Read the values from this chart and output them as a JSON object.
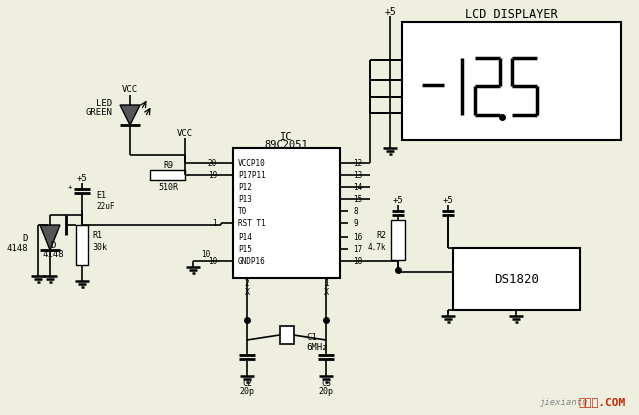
{
  "bg_color": "#efefdf",
  "lc": "#000000",
  "tc": "#000000",
  "lcd_label": "LCD DISPLAYER",
  "ic_label": "IC\n89C2051",
  "ds_label": "DS1820",
  "watermark1": "jiexiantu",
  "watermark2": "接线图.COM",
  "pins_left": [
    [
      "VCCP10",
      163
    ],
    [
      "P17P11",
      175
    ],
    [
      "P12",
      187
    ],
    [
      "P13",
      199
    ],
    [
      "T0",
      211
    ],
    [
      "RST T1",
      223
    ],
    [
      "P14",
      237
    ],
    [
      "P15",
      249
    ],
    [
      "GNDP16",
      261
    ]
  ],
  "pins_right_nums": [
    [
      "12",
      163
    ],
    [
      "13",
      175
    ],
    [
      "14",
      187
    ],
    [
      "15",
      199
    ],
    [
      "8",
      211
    ],
    [
      "9",
      223
    ],
    [
      "16",
      237
    ],
    [
      "17",
      249
    ],
    [
      "18",
      261
    ]
  ]
}
